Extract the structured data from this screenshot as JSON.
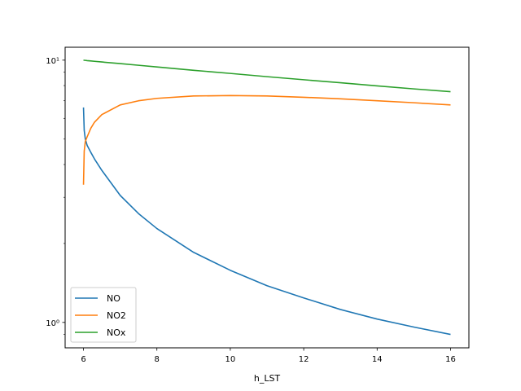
{
  "chart_data": {
    "type": "line",
    "title": "",
    "xlabel": "h_LST",
    "ylabel": "",
    "yscale": "log",
    "xlim": [
      5.5,
      16.5
    ],
    "ylim": [
      0.8,
      11.2
    ],
    "x_ticks": [
      6,
      8,
      10,
      12,
      14,
      16
    ],
    "x_tick_labels": [
      "6",
      "8",
      "10",
      "12",
      "14",
      "16"
    ],
    "y_ticks": [
      1,
      10
    ],
    "y_tick_labels": [
      "10⁰",
      "10¹"
    ],
    "grid": false,
    "legend": "lower-left",
    "x": [
      6.0,
      6.02,
      6.05,
      6.1,
      6.2,
      6.3,
      6.5,
      7.0,
      7.5,
      8.0,
      9.0,
      10.0,
      11.0,
      12.0,
      13.0,
      14.0,
      15.0,
      16.0
    ],
    "series": [
      {
        "name": "NO",
        "color": "#1f77b4",
        "values": [
          6.6,
          5.4,
          5.0,
          4.73,
          4.45,
          4.2,
          3.8,
          3.05,
          2.6,
          2.28,
          1.85,
          1.58,
          1.38,
          1.24,
          1.12,
          1.03,
          0.96,
          0.9
        ]
      },
      {
        "name": "NO2",
        "color": "#ff7f0e",
        "values": [
          3.35,
          4.5,
          4.9,
          5.1,
          5.5,
          5.8,
          6.2,
          6.75,
          7.0,
          7.15,
          7.3,
          7.33,
          7.3,
          7.22,
          7.12,
          7.0,
          6.88,
          6.75
        ]
      },
      {
        "name": "NOx",
        "color": "#2ca02c",
        "values": [
          10.0,
          9.99,
          9.98,
          9.96,
          9.93,
          9.9,
          9.84,
          9.7,
          9.56,
          9.42,
          9.15,
          8.9,
          8.65,
          8.42,
          8.2,
          7.98,
          7.77,
          7.58
        ]
      }
    ]
  }
}
